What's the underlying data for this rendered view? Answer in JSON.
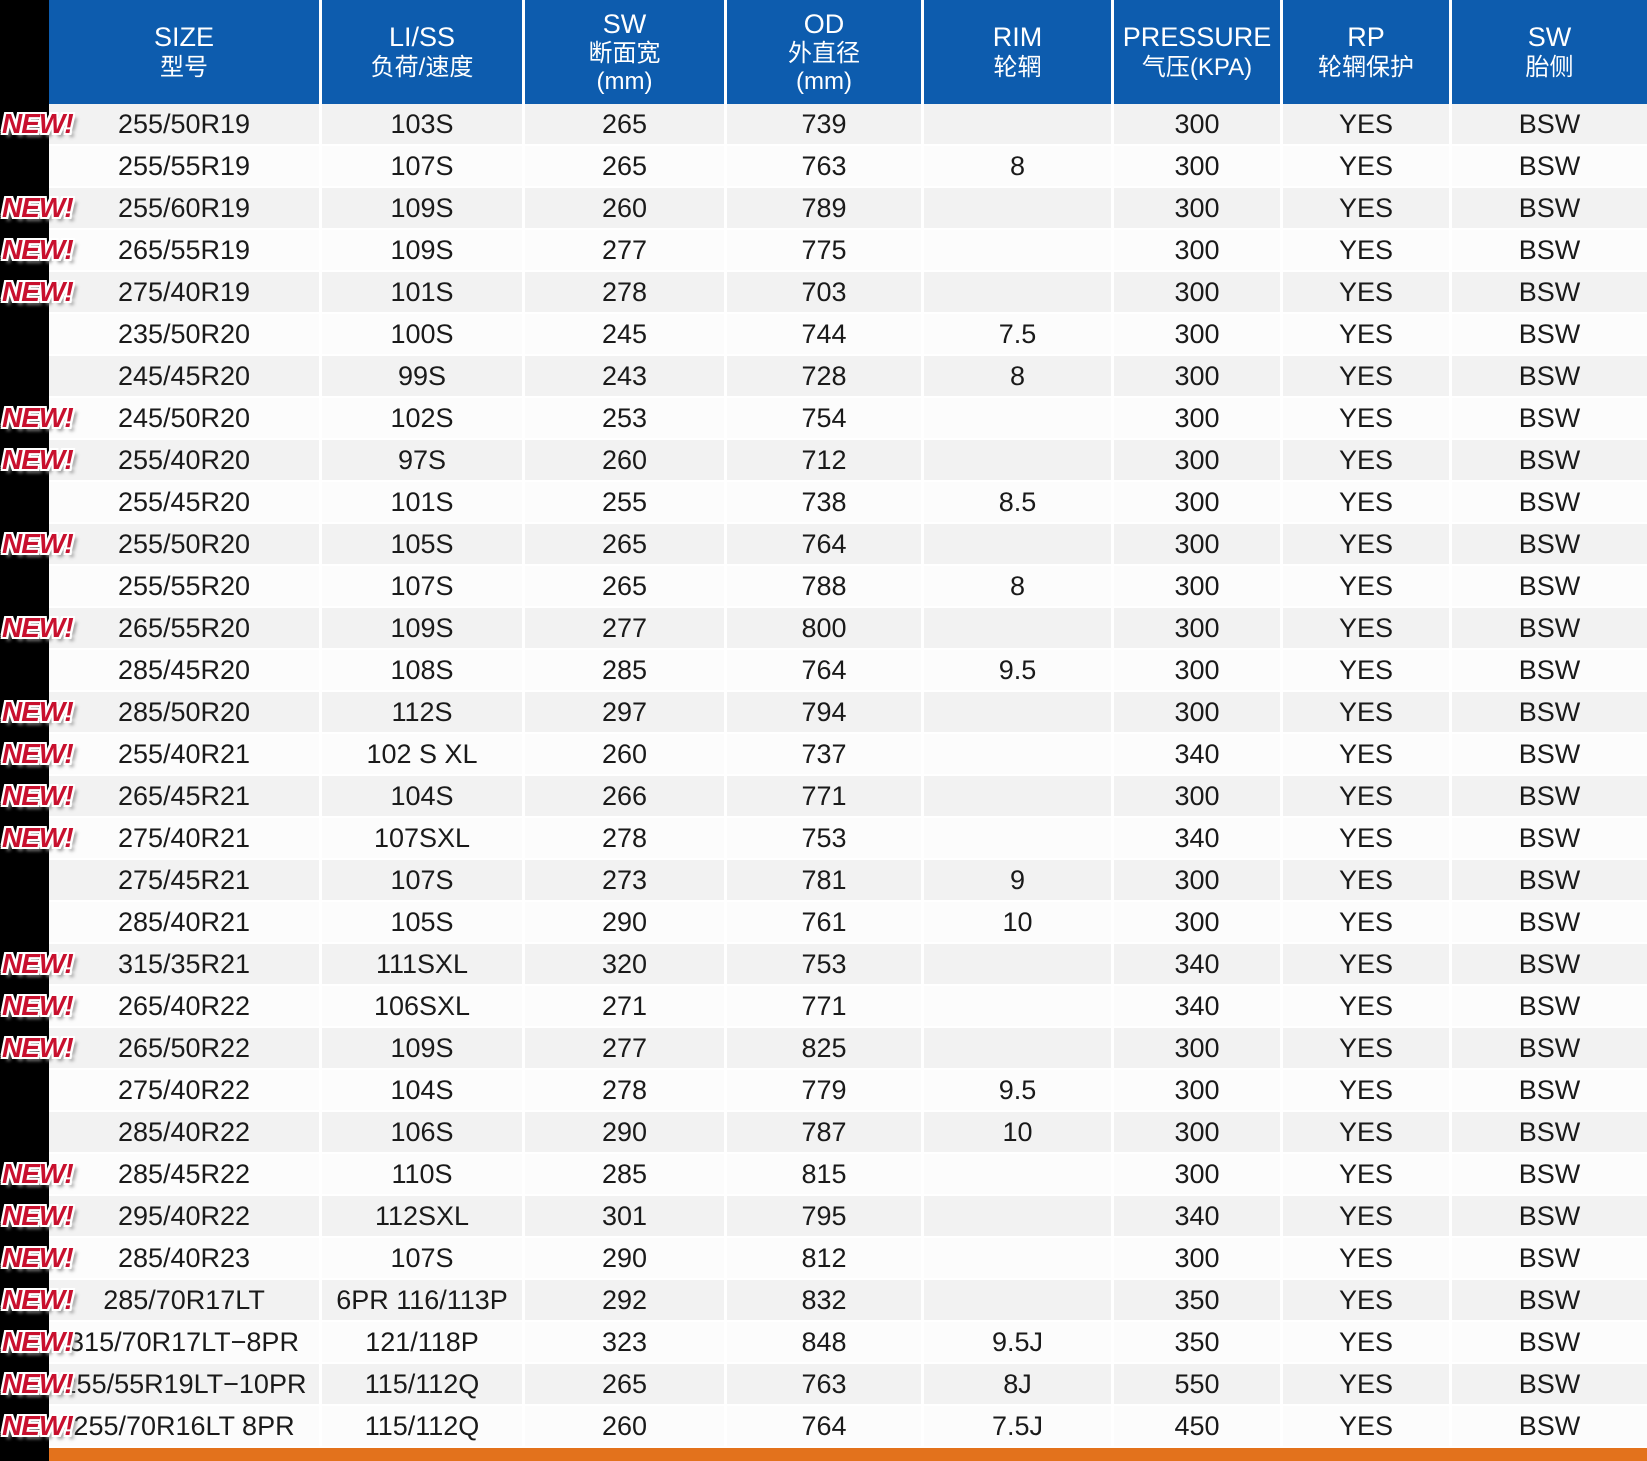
{
  "colors": {
    "header_blue": "#0D5CAE",
    "stripe_gray": "#F2F2F2",
    "row_white": "#FCFCFC",
    "accent_orange": "#E3721C",
    "badge_red": "#C8102E",
    "band_black": "#000000"
  },
  "table": {
    "new_badge_label": "NEW!",
    "columns": [
      {
        "key": "size",
        "lines": [
          "SIZE",
          "型号"
        ]
      },
      {
        "key": "li-ss",
        "lines": [
          "LI/SS",
          "负荷/速度"
        ]
      },
      {
        "key": "sw-section-width",
        "lines": [
          "SW",
          "断面宽",
          "(mm)"
        ]
      },
      {
        "key": "od-outer-diameter",
        "lines": [
          "OD",
          "外直径",
          "(mm)"
        ]
      },
      {
        "key": "rim",
        "lines": [
          "RIM",
          "轮辋"
        ]
      },
      {
        "key": "pressure",
        "lines": [
          "PRESSURE",
          "气压(KPA)"
        ]
      },
      {
        "key": "rp-rim-protection",
        "lines": [
          "RP",
          "轮辋保护"
        ]
      },
      {
        "key": "sw-sidewall",
        "lines": [
          "SW",
          "胎侧"
        ]
      }
    ],
    "rows": [
      {
        "is_new": true,
        "size": "255/50R19",
        "li_ss": "103S",
        "sw": "265",
        "od": "739",
        "rim": "",
        "pressure": "300",
        "rp": "YES",
        "sidewall": "BSW"
      },
      {
        "is_new": false,
        "size": "255/55R19",
        "li_ss": "107S",
        "sw": "265",
        "od": "763",
        "rim": "8",
        "pressure": "300",
        "rp": "YES",
        "sidewall": "BSW"
      },
      {
        "is_new": true,
        "size": "255/60R19",
        "li_ss": "109S",
        "sw": "260",
        "od": "789",
        "rim": "",
        "pressure": "300",
        "rp": "YES",
        "sidewall": "BSW"
      },
      {
        "is_new": true,
        "size": "265/55R19",
        "li_ss": "109S",
        "sw": "277",
        "od": "775",
        "rim": "",
        "pressure": "300",
        "rp": "YES",
        "sidewall": "BSW"
      },
      {
        "is_new": true,
        "size": "275/40R19",
        "li_ss": "101S",
        "sw": "278",
        "od": "703",
        "rim": "",
        "pressure": "300",
        "rp": "YES",
        "sidewall": "BSW"
      },
      {
        "is_new": false,
        "size": "235/50R20",
        "li_ss": "100S",
        "sw": "245",
        "od": "744",
        "rim": "7.5",
        "pressure": "300",
        "rp": "YES",
        "sidewall": "BSW"
      },
      {
        "is_new": false,
        "size": "245/45R20",
        "li_ss": "99S",
        "sw": "243",
        "od": "728",
        "rim": "8",
        "pressure": "300",
        "rp": "YES",
        "sidewall": "BSW"
      },
      {
        "is_new": true,
        "size": "245/50R20",
        "li_ss": "102S",
        "sw": "253",
        "od": "754",
        "rim": "",
        "pressure": "300",
        "rp": "YES",
        "sidewall": "BSW"
      },
      {
        "is_new": true,
        "size": "255/40R20",
        "li_ss": "97S",
        "sw": "260",
        "od": "712",
        "rim": "",
        "pressure": "300",
        "rp": "YES",
        "sidewall": "BSW"
      },
      {
        "is_new": false,
        "size": "255/45R20",
        "li_ss": "101S",
        "sw": "255",
        "od": "738",
        "rim": "8.5",
        "pressure": "300",
        "rp": "YES",
        "sidewall": "BSW"
      },
      {
        "is_new": true,
        "size": "255/50R20",
        "li_ss": "105S",
        "sw": "265",
        "od": "764",
        "rim": "",
        "pressure": "300",
        "rp": "YES",
        "sidewall": "BSW"
      },
      {
        "is_new": false,
        "size": "255/55R20",
        "li_ss": "107S",
        "sw": "265",
        "od": "788",
        "rim": "8",
        "pressure": "300",
        "rp": "YES",
        "sidewall": "BSW"
      },
      {
        "is_new": true,
        "size": "265/55R20",
        "li_ss": "109S",
        "sw": "277",
        "od": "800",
        "rim": "",
        "pressure": "300",
        "rp": "YES",
        "sidewall": "BSW"
      },
      {
        "is_new": false,
        "size": "285/45R20",
        "li_ss": "108S",
        "sw": "285",
        "od": "764",
        "rim": "9.5",
        "pressure": "300",
        "rp": "YES",
        "sidewall": "BSW"
      },
      {
        "is_new": true,
        "size": "285/50R20",
        "li_ss": "112S",
        "sw": "297",
        "od": "794",
        "rim": "",
        "pressure": "300",
        "rp": "YES",
        "sidewall": "BSW"
      },
      {
        "is_new": true,
        "size": "255/40R21",
        "li_ss": "102 S XL",
        "sw": "260",
        "od": "737",
        "rim": "",
        "pressure": "340",
        "rp": "YES",
        "sidewall": "BSW"
      },
      {
        "is_new": true,
        "size": "265/45R21",
        "li_ss": "104S",
        "sw": "266",
        "od": "771",
        "rim": "",
        "pressure": "300",
        "rp": "YES",
        "sidewall": "BSW"
      },
      {
        "is_new": true,
        "size": "275/40R21",
        "li_ss": "107SXL",
        "sw": "278",
        "od": "753",
        "rim": "",
        "pressure": "340",
        "rp": "YES",
        "sidewall": "BSW"
      },
      {
        "is_new": false,
        "size": "275/45R21",
        "li_ss": "107S",
        "sw": "273",
        "od": "781",
        "rim": "9",
        "pressure": "300",
        "rp": "YES",
        "sidewall": "BSW"
      },
      {
        "is_new": false,
        "size": "285/40R21",
        "li_ss": "105S",
        "sw": "290",
        "od": "761",
        "rim": "10",
        "pressure": "300",
        "rp": "YES",
        "sidewall": "BSW"
      },
      {
        "is_new": true,
        "size": "315/35R21",
        "li_ss": "111SXL",
        "sw": "320",
        "od": "753",
        "rim": "",
        "pressure": "340",
        "rp": "YES",
        "sidewall": "BSW"
      },
      {
        "is_new": true,
        "size": "265/40R22",
        "li_ss": "106SXL",
        "sw": "271",
        "od": "771",
        "rim": "",
        "pressure": "340",
        "rp": "YES",
        "sidewall": "BSW"
      },
      {
        "is_new": true,
        "size": "265/50R22",
        "li_ss": "109S",
        "sw": "277",
        "od": "825",
        "rim": "",
        "pressure": "300",
        "rp": "YES",
        "sidewall": "BSW"
      },
      {
        "is_new": false,
        "size": "275/40R22",
        "li_ss": "104S",
        "sw": "278",
        "od": "779",
        "rim": "9.5",
        "pressure": "300",
        "rp": "YES",
        "sidewall": "BSW"
      },
      {
        "is_new": false,
        "size": "285/40R22",
        "li_ss": "106S",
        "sw": "290",
        "od": "787",
        "rim": "10",
        "pressure": "300",
        "rp": "YES",
        "sidewall": "BSW"
      },
      {
        "is_new": true,
        "size": "285/45R22",
        "li_ss": "110S",
        "sw": "285",
        "od": "815",
        "rim": "",
        "pressure": "300",
        "rp": "YES",
        "sidewall": "BSW"
      },
      {
        "is_new": true,
        "size": "295/40R22",
        "li_ss": "112SXL",
        "sw": "301",
        "od": "795",
        "rim": "",
        "pressure": "340",
        "rp": "YES",
        "sidewall": "BSW"
      },
      {
        "is_new": true,
        "size": "285/40R23",
        "li_ss": "107S",
        "sw": "290",
        "od": "812",
        "rim": "",
        "pressure": "300",
        "rp": "YES",
        "sidewall": "BSW"
      },
      {
        "is_new": true,
        "size": "285/70R17LT",
        "li_ss": "6PR 116/113P",
        "sw": "292",
        "od": "832",
        "rim": "",
        "pressure": "350",
        "rp": "YES",
        "sidewall": "BSW"
      },
      {
        "is_new": true,
        "size": "315/70R17LT−8PR",
        "li_ss": "121/118P",
        "sw": "323",
        "od": "848",
        "rim": "9.5J",
        "pressure": "350",
        "rp": "YES",
        "sidewall": "BSW"
      },
      {
        "is_new": true,
        "size": "255/55R19LT−10PR",
        "li_ss": "115/112Q",
        "sw": "265",
        "od": "763",
        "rim": "8J",
        "pressure": "550",
        "rp": "YES",
        "sidewall": "BSW"
      },
      {
        "is_new": true,
        "size": "255/70R16LT 8PR",
        "li_ss": "115/112Q",
        "sw": "260",
        "od": "764",
        "rim": "7.5J",
        "pressure": "450",
        "rp": "YES",
        "sidewall": "BSW"
      }
    ]
  }
}
